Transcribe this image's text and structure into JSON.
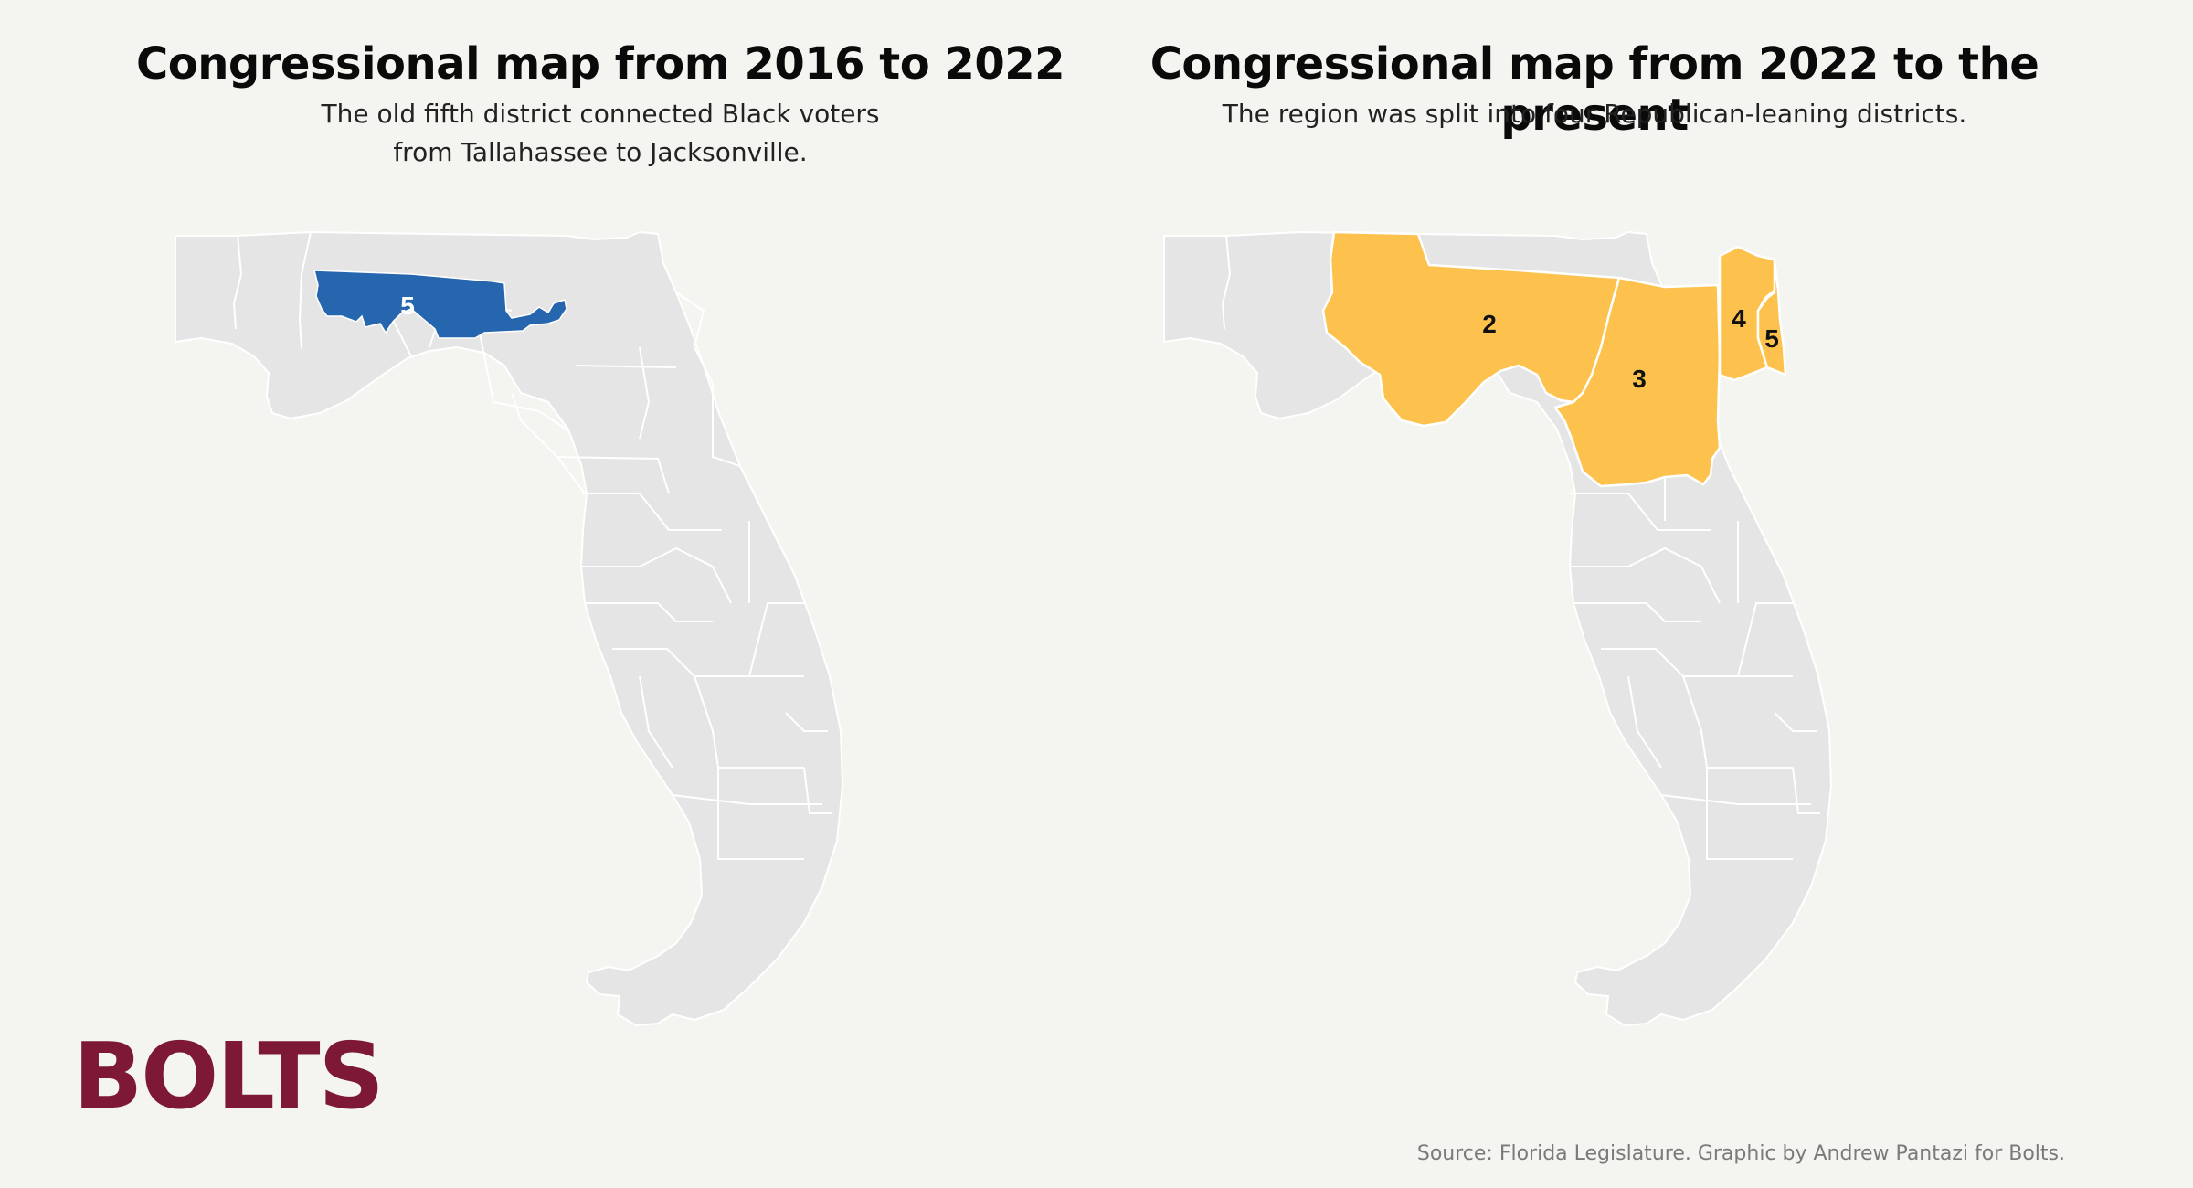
{
  "colors": {
    "background": "#f4f4f0",
    "state_fill": "#e5e5e5",
    "old_district": "#2566ae",
    "new_districts": "#fdc24e",
    "logo": "#7d1937"
  },
  "left_map": {
    "title": "Congressional map from 2016 to 2022",
    "subtitle_line1": "The old fifth district connected Black voters",
    "subtitle_line2": "from Tallahassee to Jacksonville.",
    "highlighted_districts": [
      {
        "number": "5",
        "color": "#2566ae"
      }
    ]
  },
  "right_map": {
    "title": "Congressional map from 2022 to the present",
    "subtitle": "The region was split into four Republican-leaning districts.",
    "highlighted_districts": [
      {
        "number": "2",
        "color": "#fdc24e"
      },
      {
        "number": "3",
        "color": "#fdc24e"
      },
      {
        "number": "4",
        "color": "#fdc24e"
      },
      {
        "number": "5",
        "color": "#fdc24e"
      }
    ]
  },
  "logo": {
    "text": "BOLTS"
  },
  "source": "Source: Florida Legislature. Graphic by Andrew Pantazi for Bolts."
}
